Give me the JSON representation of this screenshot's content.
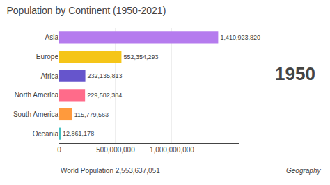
{
  "chart_data": {
    "type": "bar",
    "orientation": "horizontal",
    "title": "Population by Continent (1950-2021)",
    "categories": [
      "Asia",
      "Europe",
      "Africa",
      "North America",
      "South America",
      "Oceania"
    ],
    "values": [
      1410923820,
      552354293,
      232135813,
      229582384,
      115779563,
      12861178
    ],
    "value_labels": [
      "1,410,923,820",
      "552,354,293",
      "232,135,813",
      "229,582,384",
      "115,779,563",
      "12,861,178"
    ],
    "data_labels": true,
    "colors": [
      "#b57bee",
      "#f5c518",
      "#6655cc",
      "#ff6b8a",
      "#ff9a3c",
      "#40c0c0"
    ],
    "xlim": [
      0,
      1600000000
    ],
    "xticks": [
      {
        "value": 0,
        "label": "0"
      },
      {
        "value": 500000000,
        "label": "500,000,000"
      },
      {
        "value": 1000000000,
        "label": "1,000,000,000"
      }
    ],
    "grid": true,
    "annotations": [
      "1950",
      "World Population 2,553,637,051",
      "Geography"
    ]
  }
}
